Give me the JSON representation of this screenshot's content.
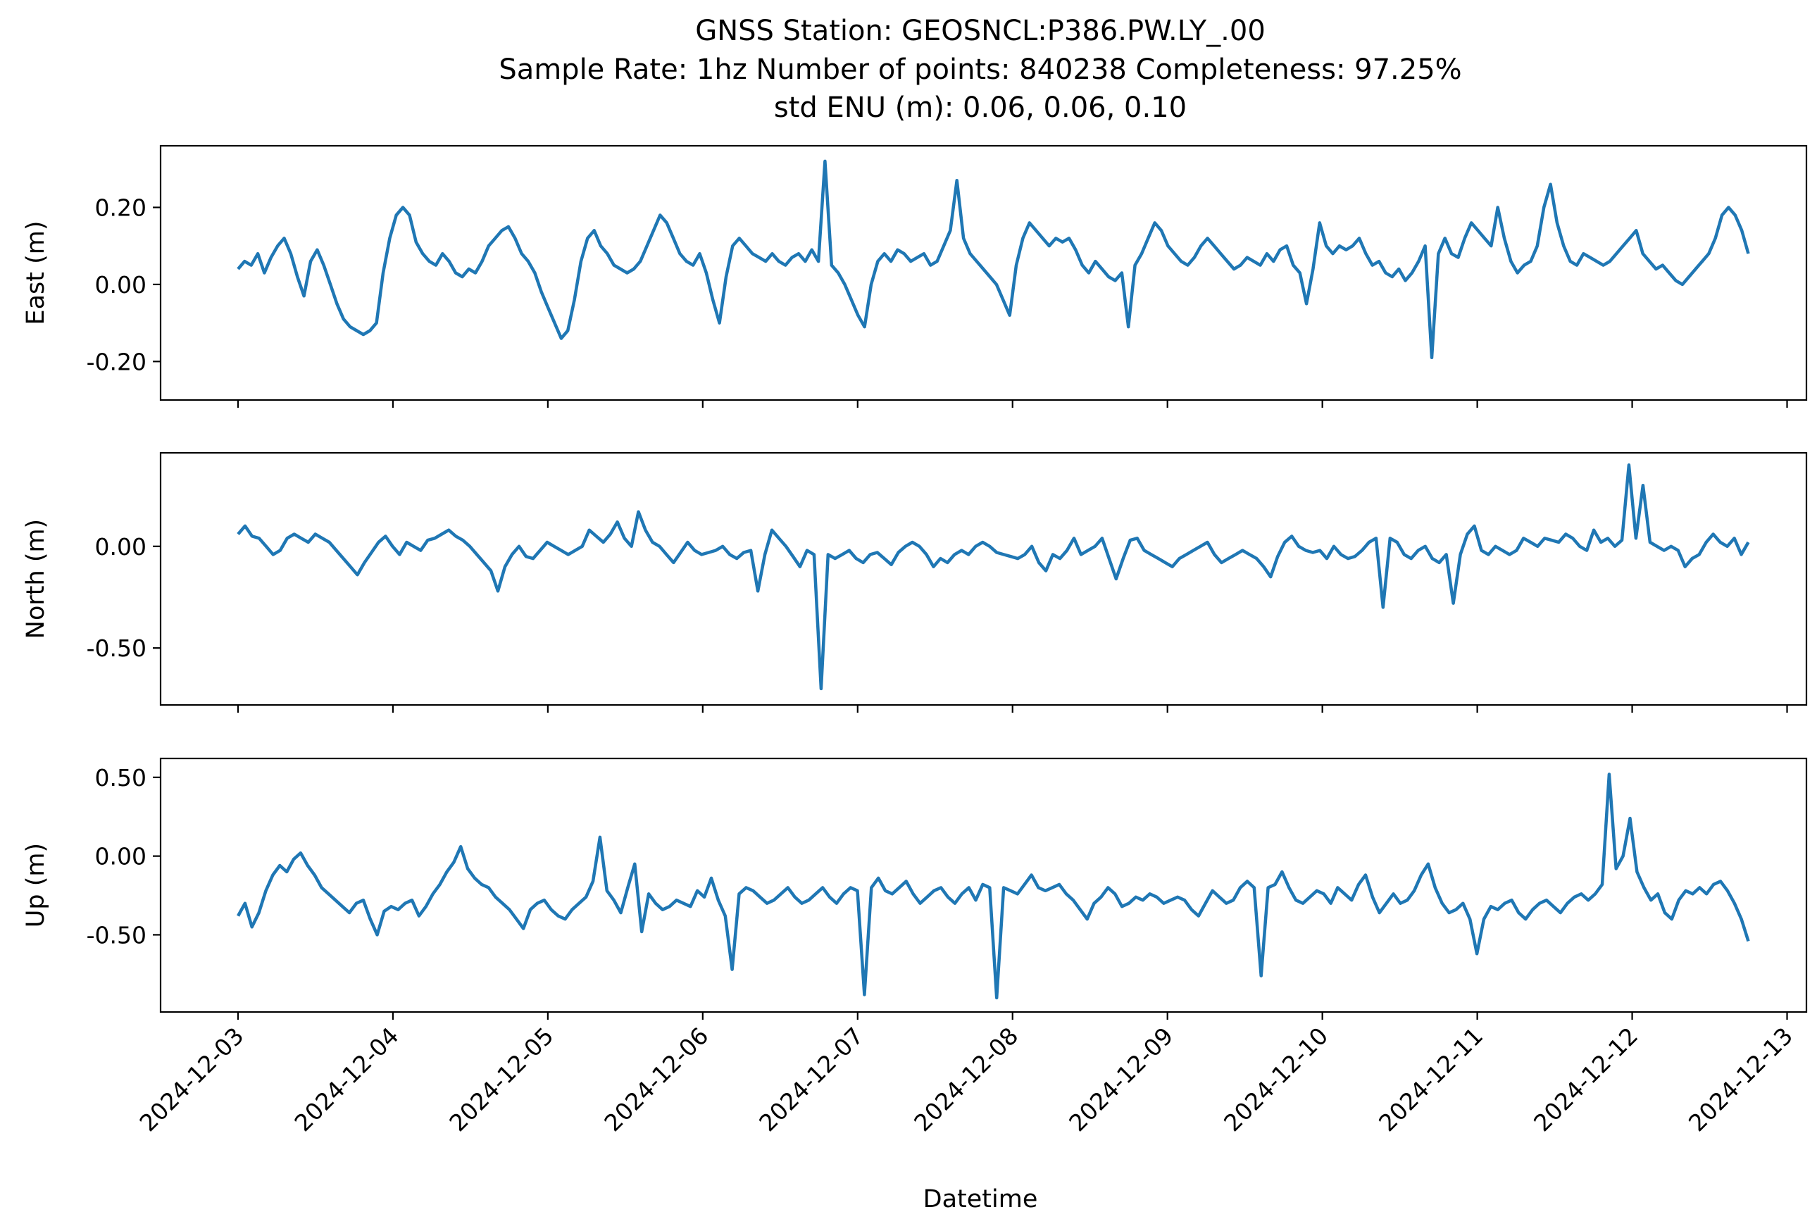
{
  "figure": {
    "title_lines": [
      "GNSS Station: GEOSNCL:P386.PW.LY_.00",
      "Sample Rate: 1hz   Number of points: 840238    Completeness:  97.25%",
      "std ENU (m):  0.06, 0.06, 0.10"
    ]
  },
  "chart_data": [
    {
      "type": "line",
      "ylabel": "East (m)",
      "xlabel": "",
      "ylim": [
        -0.3,
        0.36
      ],
      "yticks": [
        -0.2,
        0.0,
        0.2
      ],
      "ytick_labels": [
        "-0.20",
        "0.00",
        "0.20"
      ],
      "xlim": [
        "2024-12-02T12:00",
        "2024-12-13T03:00"
      ],
      "color": "#1f77b4",
      "series": [
        {
          "x_start": "2024-12-03T00:00",
          "x_end": "2024-12-12T18:00",
          "values": [
            0.04,
            0.06,
            0.05,
            0.08,
            0.03,
            0.07,
            0.1,
            0.12,
            0.08,
            0.02,
            -0.03,
            0.06,
            0.09,
            0.05,
            0.0,
            -0.05,
            -0.09,
            -0.11,
            -0.12,
            -0.13,
            -0.12,
            -0.1,
            0.03,
            0.12,
            0.18,
            0.2,
            0.18,
            0.11,
            0.08,
            0.06,
            0.05,
            0.08,
            0.06,
            0.03,
            0.02,
            0.04,
            0.03,
            0.06,
            0.1,
            0.12,
            0.14,
            0.15,
            0.12,
            0.08,
            0.06,
            0.03,
            -0.02,
            -0.06,
            -0.1,
            -0.14,
            -0.12,
            -0.04,
            0.06,
            0.12,
            0.14,
            0.1,
            0.08,
            0.05,
            0.04,
            0.03,
            0.04,
            0.06,
            0.1,
            0.14,
            0.18,
            0.16,
            0.12,
            0.08,
            0.06,
            0.05,
            0.08,
            0.03,
            -0.04,
            -0.1,
            0.02,
            0.1,
            0.12,
            0.1,
            0.08,
            0.07,
            0.06,
            0.08,
            0.06,
            0.05,
            0.07,
            0.08,
            0.06,
            0.09,
            0.06,
            0.32,
            0.05,
            0.03,
            0.0,
            -0.04,
            -0.08,
            -0.11,
            0.0,
            0.06,
            0.08,
            0.06,
            0.09,
            0.08,
            0.06,
            0.07,
            0.08,
            0.05,
            0.06,
            0.1,
            0.14,
            0.27,
            0.12,
            0.08,
            0.06,
            0.04,
            0.02,
            0.0,
            -0.04,
            -0.08,
            0.05,
            0.12,
            0.16,
            0.14,
            0.12,
            0.1,
            0.12,
            0.11,
            0.12,
            0.09,
            0.05,
            0.03,
            0.06,
            0.04,
            0.02,
            0.01,
            0.03,
            -0.11,
            0.05,
            0.08,
            0.12,
            0.16,
            0.14,
            0.1,
            0.08,
            0.06,
            0.05,
            0.07,
            0.1,
            0.12,
            0.1,
            0.08,
            0.06,
            0.04,
            0.05,
            0.07,
            0.06,
            0.05,
            0.08,
            0.06,
            0.09,
            0.1,
            0.05,
            0.03,
            -0.05,
            0.04,
            0.16,
            0.1,
            0.08,
            0.1,
            0.09,
            0.1,
            0.12,
            0.08,
            0.05,
            0.06,
            0.03,
            0.02,
            0.04,
            0.01,
            0.03,
            0.06,
            0.1,
            -0.19,
            0.08,
            0.12,
            0.08,
            0.07,
            0.12,
            0.16,
            0.14,
            0.12,
            0.1,
            0.2,
            0.12,
            0.06,
            0.03,
            0.05,
            0.06,
            0.1,
            0.2,
            0.26,
            0.16,
            0.1,
            0.06,
            0.05,
            0.08,
            0.07,
            0.06,
            0.05,
            0.06,
            0.08,
            0.1,
            0.12,
            0.14,
            0.08,
            0.06,
            0.04,
            0.05,
            0.03,
            0.01,
            0.0,
            0.02,
            0.04,
            0.06,
            0.08,
            0.12,
            0.18,
            0.2,
            0.18,
            0.14,
            0.08
          ]
        }
      ]
    },
    {
      "type": "line",
      "ylabel": "North (m)",
      "xlabel": "",
      "ylim": [
        -0.78,
        0.46
      ],
      "yticks": [
        -0.5,
        0.0
      ],
      "ytick_labels": [
        "-0.50",
        "0.00"
      ],
      "xlim": [
        "2024-12-02T12:00",
        "2024-12-13T03:00"
      ],
      "color": "#1f77b4",
      "series": [
        {
          "x_start": "2024-12-03T00:00",
          "x_end": "2024-12-12T18:00",
          "values": [
            0.06,
            0.1,
            0.05,
            0.04,
            0.0,
            -0.04,
            -0.02,
            0.04,
            0.06,
            0.04,
            0.02,
            0.06,
            0.04,
            0.02,
            -0.02,
            -0.06,
            -0.1,
            -0.14,
            -0.08,
            -0.03,
            0.02,
            0.05,
            0.0,
            -0.04,
            0.02,
            0.0,
            -0.02,
            0.03,
            0.04,
            0.06,
            0.08,
            0.05,
            0.03,
            0.0,
            -0.04,
            -0.08,
            -0.12,
            -0.22,
            -0.1,
            -0.04,
            0.0,
            -0.05,
            -0.06,
            -0.02,
            0.02,
            0.0,
            -0.02,
            -0.04,
            -0.02,
            0.0,
            0.08,
            0.05,
            0.02,
            0.06,
            0.12,
            0.04,
            0.0,
            0.17,
            0.08,
            0.02,
            0.0,
            -0.04,
            -0.08,
            -0.03,
            0.02,
            -0.02,
            -0.04,
            -0.03,
            -0.02,
            0.0,
            -0.04,
            -0.06,
            -0.03,
            -0.02,
            -0.22,
            -0.04,
            0.08,
            0.04,
            0.0,
            -0.05,
            -0.1,
            -0.02,
            -0.04,
            -0.7,
            -0.04,
            -0.06,
            -0.04,
            -0.02,
            -0.06,
            -0.08,
            -0.04,
            -0.03,
            -0.06,
            -0.09,
            -0.03,
            0.0,
            0.02,
            0.0,
            -0.04,
            -0.1,
            -0.06,
            -0.08,
            -0.04,
            -0.02,
            -0.04,
            0.0,
            0.02,
            0.0,
            -0.03,
            -0.04,
            -0.05,
            -0.06,
            -0.04,
            0.0,
            -0.08,
            -0.12,
            -0.04,
            -0.06,
            -0.02,
            0.04,
            -0.04,
            -0.02,
            0.0,
            0.04,
            -0.06,
            -0.16,
            -0.06,
            0.03,
            0.04,
            -0.02,
            -0.04,
            -0.06,
            -0.08,
            -0.1,
            -0.06,
            -0.04,
            -0.02,
            0.0,
            0.02,
            -0.04,
            -0.08,
            -0.06,
            -0.04,
            -0.02,
            -0.04,
            -0.06,
            -0.1,
            -0.15,
            -0.05,
            0.02,
            0.05,
            0.0,
            -0.02,
            -0.03,
            -0.02,
            -0.06,
            0.0,
            -0.04,
            -0.06,
            -0.05,
            -0.02,
            0.02,
            0.04,
            -0.3,
            0.04,
            0.02,
            -0.04,
            -0.06,
            -0.02,
            0.0,
            -0.06,
            -0.08,
            -0.04,
            -0.28,
            -0.04,
            0.06,
            0.1,
            -0.02,
            -0.04,
            0.0,
            -0.02,
            -0.04,
            -0.02,
            0.04,
            0.02,
            0.0,
            0.04,
            0.03,
            0.02,
            0.06,
            0.04,
            0.0,
            -0.02,
            0.08,
            0.02,
            0.04,
            0.0,
            0.03,
            0.4,
            0.04,
            0.3,
            0.02,
            0.0,
            -0.02,
            0.0,
            -0.02,
            -0.1,
            -0.06,
            -0.04,
            0.02,
            0.06,
            0.02,
            0.0,
            0.04,
            -0.04,
            0.02
          ]
        }
      ]
    },
    {
      "type": "line",
      "ylabel": "Up (m)",
      "xlabel": "Datetime",
      "ylim": [
        -0.99,
        0.62
      ],
      "yticks": [
        -0.5,
        0.0,
        0.5
      ],
      "ytick_labels": [
        "-0.50",
        "0.00",
        "0.50"
      ],
      "xlim": [
        "2024-12-02T12:00",
        "2024-12-13T03:00"
      ],
      "xticks": [
        "2024-12-03",
        "2024-12-04",
        "2024-12-05",
        "2024-12-06",
        "2024-12-07",
        "2024-12-08",
        "2024-12-09",
        "2024-12-10",
        "2024-12-11",
        "2024-12-12",
        "2024-12-13"
      ],
      "color": "#1f77b4",
      "series": [
        {
          "x_start": "2024-12-03T00:00",
          "x_end": "2024-12-12T18:00",
          "values": [
            -0.38,
            -0.3,
            -0.45,
            -0.36,
            -0.22,
            -0.12,
            -0.06,
            -0.1,
            -0.02,
            0.02,
            -0.06,
            -0.12,
            -0.2,
            -0.24,
            -0.28,
            -0.32,
            -0.36,
            -0.3,
            -0.28,
            -0.4,
            -0.5,
            -0.35,
            -0.32,
            -0.34,
            -0.3,
            -0.28,
            -0.38,
            -0.32,
            -0.24,
            -0.18,
            -0.1,
            -0.04,
            0.06,
            -0.08,
            -0.14,
            -0.18,
            -0.2,
            -0.26,
            -0.3,
            -0.34,
            -0.4,
            -0.46,
            -0.34,
            -0.3,
            -0.28,
            -0.34,
            -0.38,
            -0.4,
            -0.34,
            -0.3,
            -0.26,
            -0.16,
            0.12,
            -0.22,
            -0.28,
            -0.36,
            -0.2,
            -0.05,
            -0.48,
            -0.24,
            -0.3,
            -0.34,
            -0.32,
            -0.28,
            -0.3,
            -0.32,
            -0.22,
            -0.26,
            -0.14,
            -0.28,
            -0.38,
            -0.72,
            -0.24,
            -0.2,
            -0.22,
            -0.26,
            -0.3,
            -0.28,
            -0.24,
            -0.2,
            -0.26,
            -0.3,
            -0.28,
            -0.24,
            -0.2,
            -0.26,
            -0.3,
            -0.24,
            -0.2,
            -0.22,
            -0.88,
            -0.2,
            -0.14,
            -0.22,
            -0.24,
            -0.2,
            -0.16,
            -0.24,
            -0.3,
            -0.26,
            -0.22,
            -0.2,
            -0.26,
            -0.3,
            -0.24,
            -0.2,
            -0.28,
            -0.18,
            -0.2,
            -0.9,
            -0.2,
            -0.22,
            -0.24,
            -0.18,
            -0.12,
            -0.2,
            -0.22,
            -0.2,
            -0.18,
            -0.24,
            -0.28,
            -0.34,
            -0.4,
            -0.3,
            -0.26,
            -0.2,
            -0.24,
            -0.32,
            -0.3,
            -0.26,
            -0.28,
            -0.24,
            -0.26,
            -0.3,
            -0.28,
            -0.26,
            -0.28,
            -0.34,
            -0.38,
            -0.3,
            -0.22,
            -0.26,
            -0.3,
            -0.28,
            -0.2,
            -0.16,
            -0.2,
            -0.76,
            -0.2,
            -0.18,
            -0.1,
            -0.2,
            -0.28,
            -0.3,
            -0.26,
            -0.22,
            -0.24,
            -0.3,
            -0.2,
            -0.24,
            -0.28,
            -0.18,
            -0.12,
            -0.26,
            -0.36,
            -0.3,
            -0.24,
            -0.3,
            -0.28,
            -0.22,
            -0.12,
            -0.05,
            -0.2,
            -0.3,
            -0.36,
            -0.34,
            -0.3,
            -0.4,
            -0.62,
            -0.4,
            -0.32,
            -0.34,
            -0.3,
            -0.28,
            -0.36,
            -0.4,
            -0.34,
            -0.3,
            -0.28,
            -0.32,
            -0.36,
            -0.3,
            -0.26,
            -0.24,
            -0.28,
            -0.24,
            -0.18,
            0.52,
            -0.08,
            0.0,
            0.24,
            -0.1,
            -0.2,
            -0.28,
            -0.24,
            -0.36,
            -0.4,
            -0.28,
            -0.22,
            -0.24,
            -0.2,
            -0.24,
            -0.18,
            -0.16,
            -0.22,
            -0.3,
            -0.4,
            -0.54
          ]
        }
      ]
    }
  ]
}
